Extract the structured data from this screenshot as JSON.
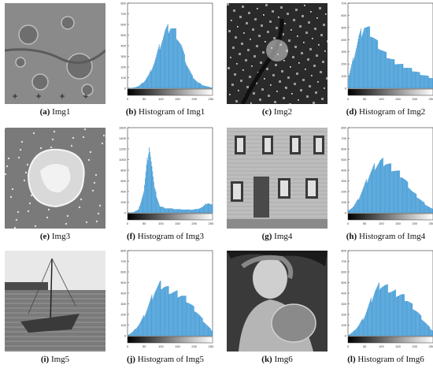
{
  "panels": [
    {
      "tag": "(a)",
      "caption": "Img1",
      "kind": "image",
      "style": "moon"
    },
    {
      "tag": "(b)",
      "caption": "Histogram of Img1",
      "kind": "histogram",
      "chart": 0
    },
    {
      "tag": "(c)",
      "caption": "Img2",
      "kind": "image",
      "style": "city"
    },
    {
      "tag": "(d)",
      "caption": "Histogram of Img2",
      "kind": "histogram",
      "chart": 1
    },
    {
      "tag": "(e)",
      "caption": "Img3",
      "kind": "image",
      "style": "nebula"
    },
    {
      "tag": "(f)",
      "caption": "Histogram of Img3",
      "kind": "histogram",
      "chart": 2
    },
    {
      "tag": "(g)",
      "caption": "Img4",
      "kind": "image",
      "style": "house"
    },
    {
      "tag": "(h)",
      "caption": "Histogram of Img4",
      "kind": "histogram",
      "chart": 3
    },
    {
      "tag": "(i)",
      "caption": "Img5",
      "kind": "image",
      "style": "boat"
    },
    {
      "tag": "(j)",
      "caption": "Histogram of Img5",
      "kind": "histogram",
      "chart": 4
    },
    {
      "tag": "(k)",
      "caption": "Img6",
      "kind": "image",
      "style": "statue"
    },
    {
      "tag": "(l)",
      "caption": "Histogram of Img6",
      "kind": "histogram",
      "chart": 5
    }
  ],
  "chart_data": [
    {
      "type": "bar",
      "title": "",
      "xlabel": "",
      "ylabel": "",
      "xlim": [
        0,
        255
      ],
      "ylim": [
        0,
        800
      ],
      "xticks": [
        "0",
        "50",
        "100",
        "150",
        "200",
        "250"
      ],
      "yticks": [
        "0",
        "100",
        "200",
        "300",
        "400",
        "500",
        "600",
        "700",
        "800"
      ],
      "x": [
        0,
        16,
        32,
        48,
        64,
        80,
        96,
        112,
        128,
        144,
        160,
        176,
        192,
        208,
        224,
        240,
        255
      ],
      "values": [
        0,
        5,
        20,
        60,
        130,
        250,
        400,
        530,
        580,
        520,
        400,
        230,
        120,
        60,
        30,
        15,
        5
      ],
      "bar_color": "#4a9fd8"
    },
    {
      "type": "bar",
      "title": "",
      "xlabel": "",
      "ylabel": "",
      "xlim": [
        0,
        255
      ],
      "ylim": [
        0,
        700
      ],
      "xticks": [
        "0",
        "50",
        "100",
        "150",
        "200",
        "250"
      ],
      "yticks": [
        "0",
        "100",
        "200",
        "300",
        "400",
        "500",
        "600",
        "700"
      ],
      "x": [
        0,
        16,
        32,
        48,
        64,
        80,
        96,
        112,
        128,
        144,
        160,
        176,
        192,
        208,
        224,
        240,
        255
      ],
      "values": [
        80,
        250,
        420,
        510,
        470,
        400,
        330,
        280,
        240,
        210,
        190,
        170,
        150,
        130,
        110,
        95,
        80
      ],
      "bar_color": "#4a9fd8"
    },
    {
      "type": "bar",
      "title": "",
      "xlabel": "",
      "ylabel": "",
      "xlim": [
        0,
        255
      ],
      "ylim": [
        0,
        1600
      ],
      "xticks": [
        "0",
        "50",
        "100",
        "150",
        "200",
        "250"
      ],
      "yticks": [
        "0",
        "200",
        "400",
        "600",
        "800",
        "1000",
        "1200",
        "1400",
        "1600"
      ],
      "x": [
        0,
        16,
        32,
        48,
        64,
        80,
        96,
        112,
        128,
        144,
        160,
        176,
        192,
        208,
        224,
        240,
        255
      ],
      "values": [
        0,
        10,
        60,
        400,
        1300,
        450,
        120,
        90,
        80,
        70,
        65,
        60,
        60,
        70,
        110,
        190,
        140
      ],
      "bar_color": "#4a9fd8"
    },
    {
      "type": "bar",
      "title": "",
      "xlabel": "",
      "ylabel": "",
      "xlim": [
        0,
        255
      ],
      "ylim": [
        0,
        800
      ],
      "xticks": [
        "0",
        "50",
        "100",
        "150",
        "200",
        "250"
      ],
      "yticks": [
        "0",
        "100",
        "200",
        "300",
        "400",
        "500",
        "600",
        "700",
        "800"
      ],
      "x": [
        0,
        16,
        32,
        48,
        64,
        80,
        96,
        112,
        128,
        144,
        160,
        176,
        192,
        208,
        224,
        240,
        255
      ],
      "values": [
        20,
        60,
        140,
        250,
        360,
        440,
        480,
        470,
        430,
        390,
        350,
        280,
        200,
        150,
        100,
        60,
        30
      ],
      "bar_color": "#4a9fd8"
    },
    {
      "type": "bar",
      "title": "",
      "xlabel": "",
      "ylabel": "",
      "xlim": [
        0,
        255
      ],
      "ylim": [
        0,
        800
      ],
      "xticks": [
        "0",
        "50",
        "100",
        "150",
        "200",
        "250"
      ],
      "yticks": [
        "0",
        "100",
        "200",
        "300",
        "400",
        "500",
        "600",
        "700",
        "800"
      ],
      "x": [
        0,
        16,
        32,
        48,
        64,
        80,
        96,
        112,
        128,
        144,
        160,
        176,
        192,
        208,
        224,
        240,
        255
      ],
      "values": [
        5,
        40,
        100,
        180,
        300,
        420,
        480,
        460,
        420,
        400,
        380,
        340,
        280,
        220,
        150,
        90,
        40
      ],
      "bar_color": "#4a9fd8"
    },
    {
      "type": "bar",
      "title": "",
      "xlabel": "",
      "ylabel": "",
      "xlim": [
        0,
        255
      ],
      "ylim": [
        0,
        800
      ],
      "xticks": [
        "0",
        "50",
        "100",
        "150",
        "200",
        "250"
      ],
      "yticks": [
        "0",
        "100",
        "200",
        "300",
        "400",
        "500",
        "600",
        "700",
        "800"
      ],
      "x": [
        0,
        16,
        32,
        48,
        64,
        80,
        96,
        112,
        128,
        144,
        160,
        176,
        192,
        208,
        224,
        240,
        255
      ],
      "values": [
        5,
        40,
        100,
        180,
        300,
        420,
        480,
        460,
        420,
        400,
        380,
        340,
        280,
        220,
        150,
        90,
        40
      ],
      "bar_color": "#4a9fd8"
    }
  ]
}
